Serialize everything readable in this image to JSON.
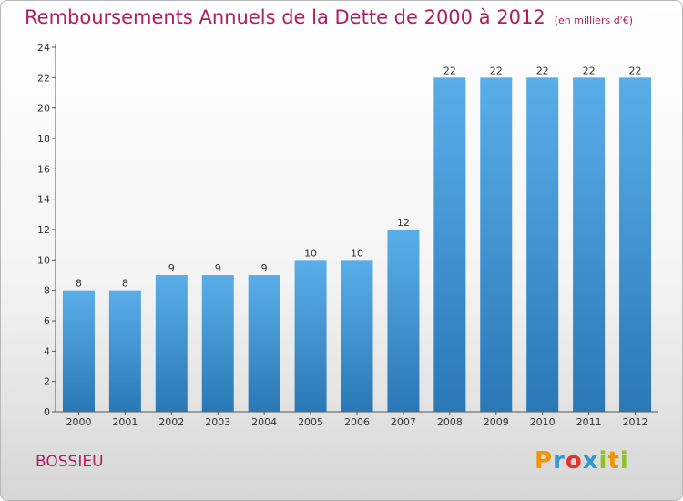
{
  "title": "Remboursements Annuels de la Dette de 2000 à 2012",
  "subtitle": "(en milliers d'€)",
  "town": "BOSSIEU",
  "logo": {
    "letters": [
      "P",
      "r",
      "o",
      "x",
      "i",
      "t",
      "i"
    ],
    "colors": [
      "#f29400",
      "#2e9ad6",
      "#e6332a",
      "#2e9ad6",
      "#95c11f",
      "#f29400",
      "#95c11f"
    ]
  },
  "colors": {
    "title": "#b01e5e",
    "bar_light": "#5aaee8",
    "bar_dark": "#2a78b6"
  },
  "chart_data": {
    "type": "bar",
    "title": "Remboursements Annuels de la Dette de 2000 à 2012",
    "categories": [
      "2000",
      "2001",
      "2002",
      "2003",
      "2004",
      "2005",
      "2006",
      "2007",
      "2008",
      "2009",
      "2010",
      "2011",
      "2012"
    ],
    "values": [
      8,
      8,
      9,
      9,
      9,
      10,
      10,
      12,
      22,
      22,
      22,
      22,
      22
    ],
    "yticks": [
      0,
      2,
      4,
      6,
      8,
      10,
      12,
      14,
      16,
      18,
      20,
      22,
      24
    ],
    "ylim": [
      0,
      24
    ],
    "xlabel": "",
    "ylabel": "",
    "grid": false
  }
}
